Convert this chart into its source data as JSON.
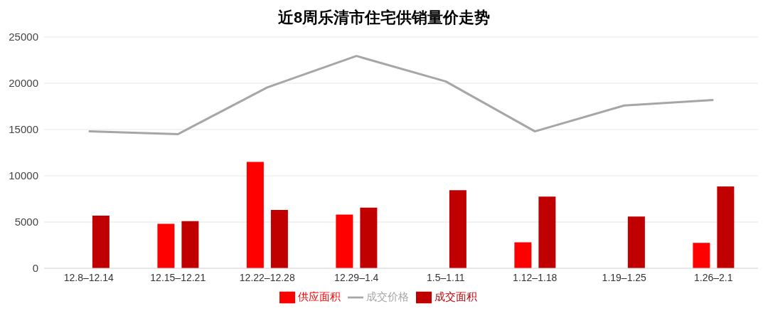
{
  "chart_data": {
    "type": "bar",
    "title": "近8周乐清市住宅供销量价走势",
    "categories": [
      "12.8–12.14",
      "12.15–12.21",
      "12.22–12.28",
      "12.29–1.4",
      "1.5–1.11",
      "1.12–1.18",
      "1.19–1.25",
      "1.26–2.1"
    ],
    "series": [
      {
        "name": "供应面积",
        "color": "#ff0000",
        "values": [
          null,
          4800,
          11500,
          5800,
          null,
          2800,
          null,
          2750
        ]
      },
      {
        "name": "成交面积",
        "color": "#c00000",
        "values": [
          5700,
          5100,
          6300,
          6550,
          8450,
          7750,
          5600,
          8850
        ]
      },
      {
        "name": "成交价格",
        "type": "line",
        "color": "#a6a6a6",
        "values": [
          14800,
          14500,
          19550,
          22950,
          20200,
          14800,
          17600,
          18200
        ]
      }
    ],
    "ylim": [
      0,
      25000
    ],
    "yticks": [
      0,
      5000,
      10000,
      15000,
      20000,
      25000
    ],
    "grid": "y",
    "legend": "bottom",
    "marker": "none"
  }
}
